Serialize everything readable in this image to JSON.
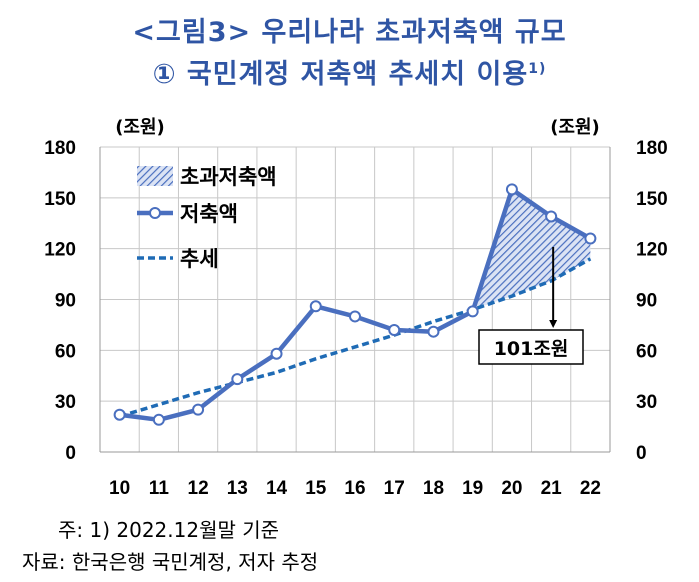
{
  "title": "<그림3> 우리나라 초과저축액 규모",
  "subtitle": "① 국민계정 저축액 추세치 이용",
  "subtitle_sup": "1)",
  "chart_data": {
    "type": "line",
    "categories": [
      "10",
      "11",
      "12",
      "13",
      "14",
      "15",
      "16",
      "17",
      "18",
      "19",
      "20",
      "21",
      "22"
    ],
    "y_unit_left": "(조원)",
    "y_unit_right": "(조원)",
    "ylim": [
      0,
      180
    ],
    "yticks": [
      0,
      30,
      60,
      90,
      120,
      150,
      180
    ],
    "grid": true,
    "legend_position": "top-left",
    "series": [
      {
        "name": "저축액",
        "style": "solid-with-markers",
        "color": "#4a6fbf",
        "values": [
          22,
          19,
          25,
          43,
          58,
          86,
          80,
          72,
          71,
          83,
          155,
          139,
          126
        ]
      },
      {
        "name": "추세",
        "style": "dashed",
        "color": "#1f6bb5",
        "values": [
          21,
          28,
          35,
          41,
          47,
          55,
          62,
          69,
          77,
          84,
          92,
          101,
          114
        ]
      }
    ],
    "fill_area": {
      "name": "초과저축액",
      "between": [
        "저축액",
        "추세"
      ],
      "from": "19",
      "to": "22",
      "pattern": "diagonal-hatch",
      "color": "#4a6fbf"
    },
    "annotation": {
      "text": "101조원",
      "category": "21"
    }
  },
  "footnotes": {
    "note": "주:  1)  2022.12월말  기준",
    "source": "자료:  한국은행  국민계정,  저자  추정"
  },
  "colors": {
    "title": "#2f55a4",
    "series": "#4a6fbf",
    "trend": "#1f6bb5",
    "grid": "#c8c8c8"
  }
}
